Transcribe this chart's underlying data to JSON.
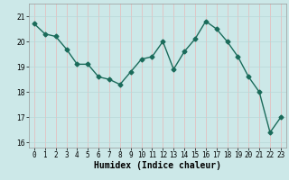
{
  "x": [
    0,
    1,
    2,
    3,
    4,
    5,
    6,
    7,
    8,
    9,
    10,
    11,
    12,
    13,
    14,
    15,
    16,
    17,
    18,
    19,
    20,
    21,
    22,
    23
  ],
  "y": [
    20.7,
    20.3,
    20.2,
    19.7,
    19.1,
    19.1,
    18.6,
    18.5,
    18.3,
    18.8,
    19.3,
    19.4,
    20.0,
    18.9,
    19.6,
    20.1,
    20.8,
    20.5,
    20.0,
    19.4,
    18.6,
    18.0,
    16.4,
    17.0
  ],
  "line_color": "#1a6b5a",
  "marker": "D",
  "marker_size": 2.5,
  "linewidth": 1.0,
  "xlabel": "Humidex (Indice chaleur)",
  "xlabel_fontsize": 7,
  "ylim": [
    15.8,
    21.5
  ],
  "xlim": [
    -0.5,
    23.5
  ],
  "yticks": [
    16,
    17,
    18,
    19,
    20,
    21
  ],
  "xticks": [
    0,
    1,
    2,
    3,
    4,
    5,
    6,
    7,
    8,
    9,
    10,
    11,
    12,
    13,
    14,
    15,
    16,
    17,
    18,
    19,
    20,
    21,
    22,
    23
  ],
  "background_color": "#cce8e8",
  "grid_color_v": "#e8b8b8",
  "grid_color_h": "#b8d8d8",
  "tick_fontsize": 5.5,
  "spine_color": "#999999"
}
